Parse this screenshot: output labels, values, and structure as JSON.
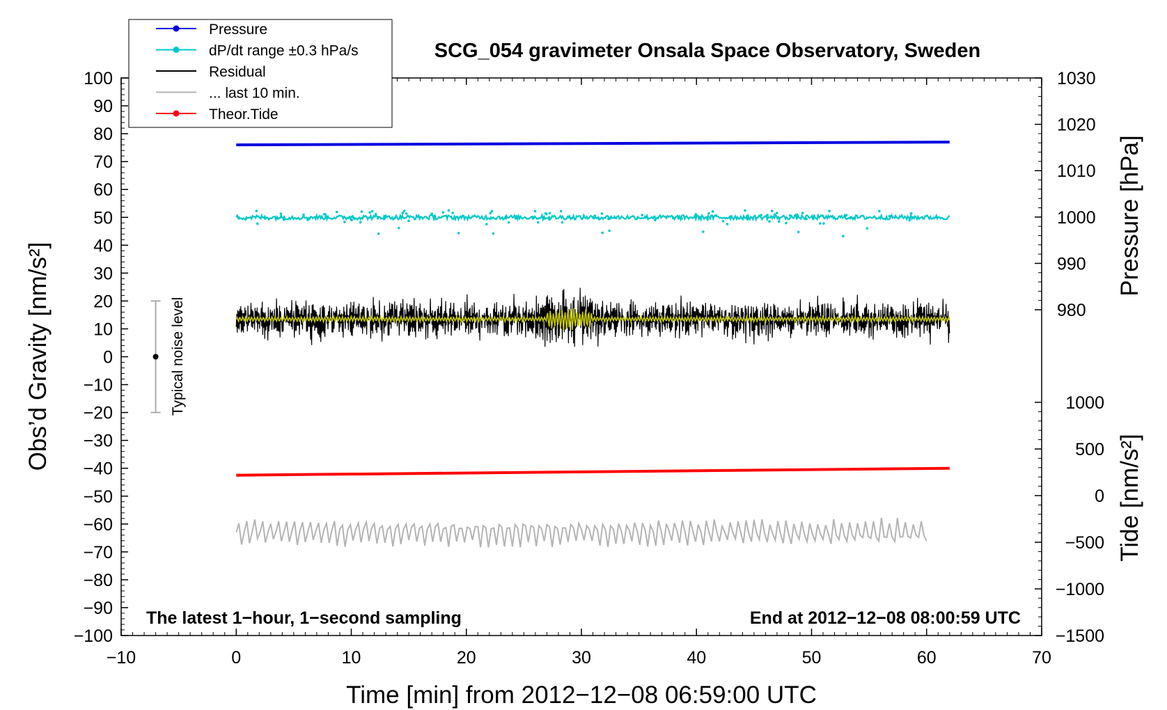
{
  "chart_data": {
    "type": "line",
    "title": "SCG_054 gravimeter Onsala Space Observatory, Sweden",
    "xlabel": "Time [min] from 2012−12−08 06:59:00 UTC",
    "ylabel_left": "Obs’d Gravity [nm/s²]",
    "ylabel_right_top": "Pressure [hPa]",
    "ylabel_right_bottom": "Tide [nm/s²]",
    "xlim": [
      -10,
      70
    ],
    "ylim_left": [
      -100,
      100
    ],
    "ylim_pressure": [
      980,
      1030
    ],
    "ylim_tide": [
      -1500,
      1000
    ],
    "x_ticks": [
      "−10",
      "0",
      "10",
      "20",
      "30",
      "40",
      "50",
      "60",
      "70"
    ],
    "y_ticks_left": [
      "100",
      "90",
      "80",
      "70",
      "60",
      "50",
      "40",
      "30",
      "20",
      "10",
      "0",
      "−10",
      "−20",
      "−30",
      "−40",
      "−50",
      "−60",
      "−70",
      "−80",
      "−90",
      "−100"
    ],
    "y_ticks_pressure": [
      "1030",
      "1020",
      "1010",
      "1000",
      "990",
      "980"
    ],
    "y_ticks_tide": [
      "1000",
      "500",
      "0",
      "−500",
      "−1000",
      "−1500"
    ],
    "legend_position": "top-left",
    "legend": [
      {
        "label": "Pressure",
        "color": "#0000e0",
        "marker": true
      },
      {
        "label": "dP/dt range ±0.3 hPa/s",
        "color": "#00c8c8",
        "marker": true
      },
      {
        "label": "Residual",
        "color": "#000000",
        "marker": false
      },
      {
        "label": "... last 10 min.",
        "color": "#b4b4b4",
        "marker": false
      },
      {
        "label": "Theor.Tide",
        "color": "#ff0000",
        "marker": true
      }
    ],
    "noise_bar": {
      "label": "Typical noise level",
      "x": -7,
      "center": 0,
      "low": -20,
      "high": 20
    },
    "annotation_left": "The latest 1−hour, 1−second sampling",
    "annotation_right": "End at 2012−12−08 08:00:59 UTC",
    "series": [
      {
        "name": "Pressure",
        "color": "#0000e0",
        "x_range": [
          0,
          62
        ],
        "y_start": 76,
        "y_end": 77,
        "axis": "left"
      },
      {
        "name": "dP/dt range ±0.3 hPa/s",
        "color": "#00c8c8",
        "x_range": [
          0,
          62
        ],
        "y_center": 50,
        "axis": "left"
      },
      {
        "name": "Residual",
        "color": "#000000",
        "x_range": [
          0,
          62
        ],
        "y_center": 13.5,
        "axis": "left"
      },
      {
        "name": "smoothed residual",
        "color": "#c8c800",
        "x_range": [
          0,
          62
        ],
        "y_center": 13.5,
        "axis": "left"
      },
      {
        "name": "Theor.Tide",
        "color": "#ff0000",
        "x_range": [
          0,
          62
        ],
        "y_start": -42.5,
        "y_end": -40,
        "axis": "left"
      },
      {
        "name": "... last 10 min.",
        "color": "#b4b4b4",
        "x_range": [
          0,
          60
        ],
        "y_center": -63,
        "axis": "left"
      }
    ]
  }
}
